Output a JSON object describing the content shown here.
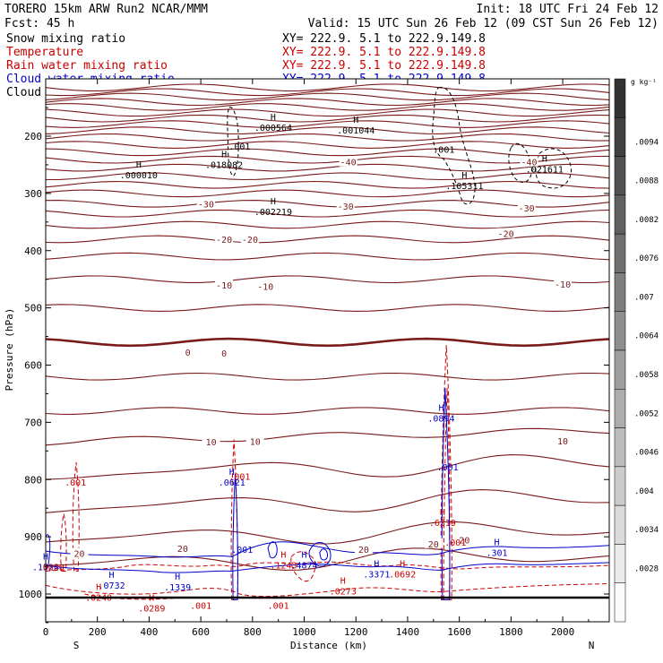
{
  "header": {
    "model": "TORERO  15km ARW   Run2    NCAR/MMM",
    "init": "Init: 18 UTC Fri 24 Feb 12",
    "fcst": "Fcst:   45 h",
    "valid": "Valid: 15 UTC Sun 26 Feb 12 (09 CST Sun 26 Feb 12)",
    "xy": "XY= 222.9.  5.1 to 222.9.149.8"
  },
  "fields": [
    {
      "label": "Snow mixing ratio",
      "color": "#000000"
    },
    {
      "label": "Temperature",
      "color": "#cc0000"
    },
    {
      "label": "Rain water mixing ratio",
      "color": "#cc0000"
    },
    {
      "label": "Cloud water mixing ratio",
      "color": "#0000cc"
    },
    {
      "label": "Cloud ice mixing ratio",
      "color": "#000000"
    }
  ],
  "chart_data": {
    "type": "cross-section",
    "xlabel": "Distance (km)",
    "ylabel": "Pressure (hPa)",
    "xlim": [
      0,
      2180
    ],
    "ylim": [
      1050,
      100
    ],
    "x_ticks": [
      "0",
      "200",
      "400",
      "600",
      "800",
      "1000",
      "1200",
      "1400",
      "1600",
      "1800",
      "2000"
    ],
    "y_ticks": [
      "200",
      "300",
      "400",
      "500",
      "600",
      "700",
      "800",
      "900",
      "1000"
    ],
    "endpoints": {
      "left": "S",
      "right": "N"
    },
    "colorbar": {
      "unit": "g kg⁻¹",
      "labels": [
        ".0094",
        ".0088",
        ".0082",
        ".0076",
        ".007",
        ".0064",
        ".0058",
        ".0052",
        ".0046",
        ".004",
        ".0034",
        ".0028"
      ]
    },
    "temperature_contour_labels": [
      {
        "text": "-40",
        "x": 1170,
        "p": 245
      },
      {
        "text": "-40",
        "x": 1870,
        "p": 245
      },
      {
        "text": "-30",
        "x": 620,
        "p": 318
      },
      {
        "text": "-30",
        "x": 1160,
        "p": 322
      },
      {
        "text": "-30",
        "x": 1860,
        "p": 325
      },
      {
        "text": "-20",
        "x": 690,
        "p": 380
      },
      {
        "text": "-20",
        "x": 790,
        "p": 380
      },
      {
        "text": "-20",
        "x": 1780,
        "p": 370
      },
      {
        "text": "-10",
        "x": 690,
        "p": 460
      },
      {
        "text": "-10",
        "x": 850,
        "p": 462
      },
      {
        "text": "-10",
        "x": 2000,
        "p": 458
      },
      {
        "text": "0",
        "x": 550,
        "p": 577
      },
      {
        "text": "0",
        "x": 690,
        "p": 579
      },
      {
        "text": "10",
        "x": 640,
        "p": 734
      },
      {
        "text": "10",
        "x": 810,
        "p": 733
      },
      {
        "text": "10",
        "x": 2000,
        "p": 732
      },
      {
        "text": "20",
        "x": 530,
        "p": 920
      },
      {
        "text": "20",
        "x": 1500,
        "p": 912
      },
      {
        "text": "20",
        "x": 1620,
        "p": 905
      },
      {
        "text": "20",
        "x": 130,
        "p": 929
      },
      {
        "text": "20",
        "x": 1230,
        "p": 922
      }
    ],
    "maxima": [
      {
        "label": "H",
        "value": ".000564",
        "x": 880,
        "p": 175,
        "color": "#000000"
      },
      {
        "label": "H",
        "value": ".001044",
        "x": 1200,
        "p": 180,
        "color": "#000000"
      },
      {
        "label": "H",
        "value": ".018082",
        "x": 690,
        "p": 240,
        "color": "#000000"
      },
      {
        "label": "H",
        "value": ".000010",
        "x": 360,
        "p": 258,
        "color": "#000000"
      },
      {
        "label": "H",
        "value": ".002219",
        "x": 880,
        "p": 322,
        "color": "#000000"
      },
      {
        "label": "H",
        "value": ".105311",
        "x": 1620,
        "p": 277,
        "color": "#000000"
      },
      {
        "label": "H",
        "value": ".021611",
        "x": 1930,
        "p": 248,
        "color": "#000000"
      },
      {
        "label": "",
        "value": ".001",
        "x": 750,
        "p": 208,
        "color": "#000000"
      },
      {
        "label": "",
        "value": ".001",
        "x": 1540,
        "p": 213,
        "color": "#000000"
      },
      {
        "label": "H",
        "value": ".0621",
        "x": 720,
        "p": 795,
        "color": "#0000cc"
      },
      {
        "label": "H",
        "value": ".0894",
        "x": 1530,
        "p": 683,
        "color": "#0000cc"
      },
      {
        "label": "",
        "value": ".001",
        "x": 1555,
        "p": 768,
        "color": "#0000cc"
      },
      {
        "label": "H",
        "value": ".6319",
        "x": 1535,
        "p": 865,
        "color": "#cc0000"
      },
      {
        "label": "",
        "value": ".001",
        "x": 750,
        "p": 785,
        "color": "#cc0000"
      },
      {
        "label": "",
        "value": ".001",
        "x": 115,
        "p": 795,
        "color": "#cc0000"
      },
      {
        "label": "",
        "value": ".001",
        "x": 760,
        "p": 912,
        "color": "#0000cc"
      },
      {
        "label": "",
        "value": ".001",
        "x": 1585,
        "p": 900,
        "color": "#cc0000"
      },
      {
        "label": "H",
        "value": ".301",
        "x": 1745,
        "p": 918,
        "color": "#0000cc"
      },
      {
        "label": "H",
        "value": ".1524",
        "x": 0,
        "p": 943,
        "color": "#0000cc"
      },
      {
        "label": "H",
        "value": ".0732",
        "x": 255,
        "p": 975,
        "color": "#0000cc"
      },
      {
        "label": "H",
        "value": ".1339",
        "x": 510,
        "p": 978,
        "color": "#0000cc"
      },
      {
        "label": "H",
        "value": ".0240",
        "x": 205,
        "p": 996,
        "color": "#cc0000"
      },
      {
        "label": "H",
        "value": ".0289",
        "x": 410,
        "p": 1015,
        "color": "#cc0000"
      },
      {
        "label": "",
        "value": ".001",
        "x": 600,
        "p": 1010,
        "color": "#cc0000"
      },
      {
        "label": "",
        "value": ".001",
        "x": 900,
        "p": 1010,
        "color": "#cc0000"
      },
      {
        "label": "H",
        "value": ".4874",
        "x": 1000,
        "p": 940,
        "color": "#0000cc"
      },
      {
        "label": "H",
        "value": ".3371",
        "x": 1280,
        "p": 955,
        "color": "#0000cc"
      },
      {
        "label": "H",
        "value": ".0692",
        "x": 1380,
        "p": 955,
        "color": "#cc0000"
      },
      {
        "label": "H",
        "value": ".0273",
        "x": 1150,
        "p": 985,
        "color": "#cc0000"
      },
      {
        "label": "H",
        "value": ".1243",
        "x": 920,
        "p": 940,
        "color": "#cc0000"
      },
      {
        "label": "",
        "value": ".0020",
        "x": 20,
        "p": 943,
        "color": "#cc0000"
      }
    ]
  }
}
